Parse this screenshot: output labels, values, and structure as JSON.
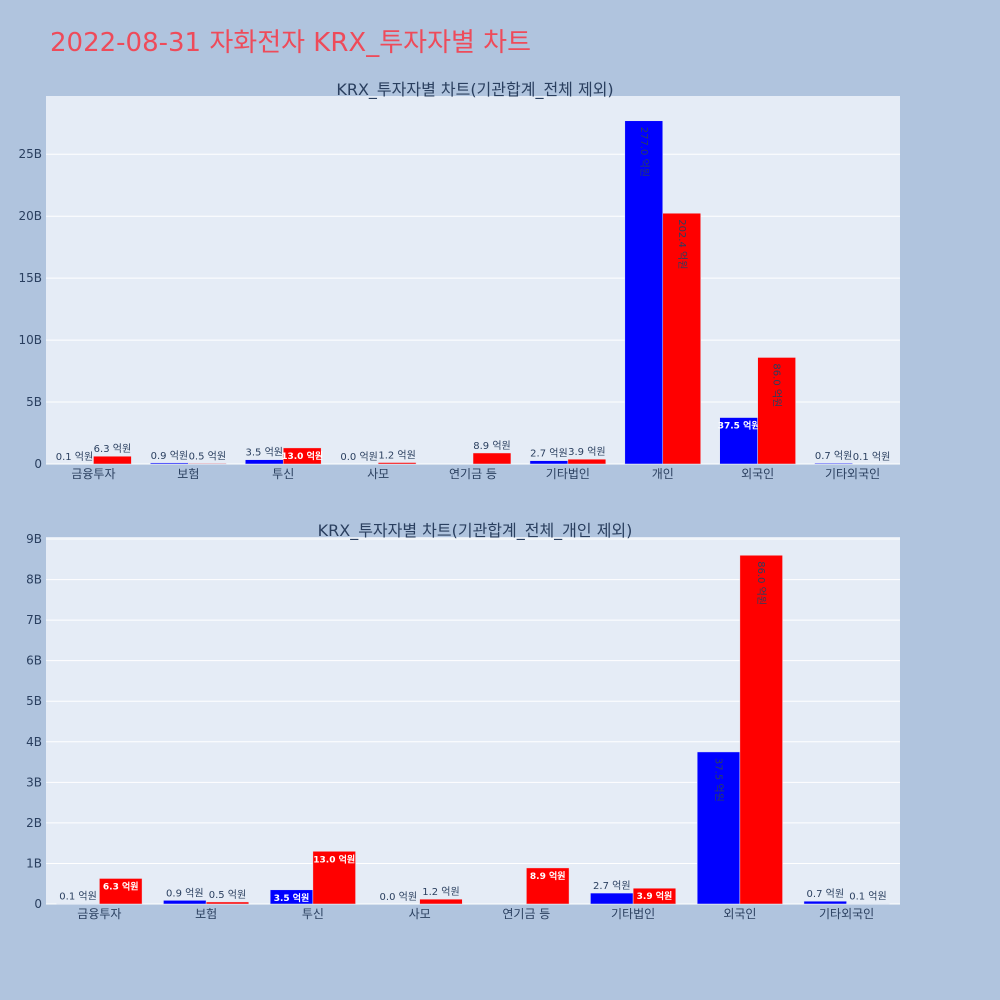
{
  "page_title": "2022-08-31 자화전자 KRX_투자자별 차트",
  "colors": {
    "buy": "#0000ff",
    "sell": "#ff0000",
    "plot_bg": "#e5ecf6",
    "page_bg": "#b0c4de",
    "title": "#ee4b5a"
  },
  "chart_data": [
    {
      "type": "bar",
      "title": "KRX_투자자별 차트(기관합계_전체 제외)",
      "categories": [
        "금융투자",
        "보험",
        "투신",
        "사모",
        "연기금 등",
        "기타법인",
        "개인",
        "외국인",
        "기타외국인"
      ],
      "series": [
        {
          "values": [
            10000000,
            90000000,
            350000000,
            0,
            0,
            270000000,
            27700000000,
            3750000000,
            70000000
          ],
          "labels": [
            "0.1 억원",
            "0.9 억원",
            "3.5 억원",
            "0.0 억원",
            "",
            "2.7 억원",
            "277.0 억원",
            "37.5 억원",
            "0.7 억원"
          ]
        },
        {
          "values": [
            630000000,
            50000000,
            1300000000,
            120000000,
            890000000,
            390000000,
            20240000000,
            8600000000,
            10000000
          ],
          "labels": [
            "6.3 억원",
            "0.5 억원",
            "13.0 억원",
            "1.2 억원",
            "8.9 억원",
            "3.9 억원",
            "202.4 억원",
            "86.0 억원",
            "0.1 억원"
          ]
        }
      ],
      "y_ticks": [
        "0",
        "5B",
        "10B",
        "15B",
        "20B",
        "25B"
      ],
      "y_tick_values": [
        0,
        5000000000,
        10000000000,
        15000000000,
        20000000000,
        25000000000
      ],
      "ylim": [
        0,
        29700000000
      ],
      "grid": true
    },
    {
      "type": "bar",
      "title": "KRX_투자자별 차트(기관합계_전체_개인 제외)",
      "categories": [
        "금융투자",
        "보험",
        "투신",
        "사모",
        "연기금 등",
        "기타법인",
        "외국인",
        "기타외국인"
      ],
      "series": [
        {
          "values": [
            10000000,
            90000000,
            350000000,
            0,
            0,
            270000000,
            3750000000,
            70000000
          ],
          "labels": [
            "0.1 억원",
            "0.9 억원",
            "3.5 억원",
            "0.0 억원",
            "",
            "2.7 억원",
            "37.5 억원",
            "0.7 억원"
          ]
        },
        {
          "values": [
            630000000,
            50000000,
            1300000000,
            120000000,
            890000000,
            390000000,
            8600000000,
            10000000
          ],
          "labels": [
            "6.3 억원",
            "0.5 억원",
            "13.0 억원",
            "1.2 억원",
            "8.9 억원",
            "3.9 억원",
            "86.0 억원",
            "0.1 억원"
          ]
        }
      ],
      "y_ticks": [
        "0",
        "1B",
        "2B",
        "3B",
        "4B",
        "5B",
        "6B",
        "7B",
        "8B",
        "9B"
      ],
      "y_tick_values": [
        0,
        1000000000,
        2000000000,
        3000000000,
        4000000000,
        5000000000,
        6000000000,
        7000000000,
        8000000000,
        9000000000
      ],
      "ylim": [
        0,
        9050000000
      ],
      "grid": true
    }
  ]
}
